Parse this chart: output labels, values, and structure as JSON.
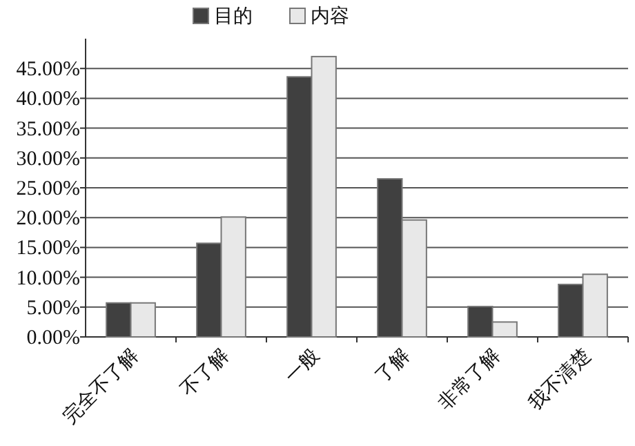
{
  "chart_data": {
    "type": "bar",
    "categories": [
      "完全不了解",
      "不了解",
      "一般",
      "了解",
      "非常了解",
      "我不清楚"
    ],
    "series": [
      {
        "name": "目的",
        "color": "#404040",
        "values": [
          5.7,
          15.7,
          43.6,
          26.5,
          5.1,
          8.8
        ]
      },
      {
        "name": "内容",
        "color": "#e8e8e8",
        "values": [
          5.7,
          20.1,
          47.0,
          19.6,
          2.5,
          10.5
        ]
      }
    ],
    "ylim": [
      0,
      50
    ],
    "yticks": [
      {
        "value": 0,
        "label": "0.00%"
      },
      {
        "value": 5,
        "label": "5.00%"
      },
      {
        "value": 10,
        "label": "10.00%"
      },
      {
        "value": 15,
        "label": "15.00%"
      },
      {
        "value": 20,
        "label": "20.00%"
      },
      {
        "value": 25,
        "label": "25.00%"
      },
      {
        "value": 30,
        "label": "30.00%"
      },
      {
        "value": 35,
        "label": "35.00%"
      },
      {
        "value": 40,
        "label": "40.00%"
      },
      {
        "value": 45,
        "label": "45.00%"
      }
    ],
    "grid": "y",
    "legend": "top"
  }
}
